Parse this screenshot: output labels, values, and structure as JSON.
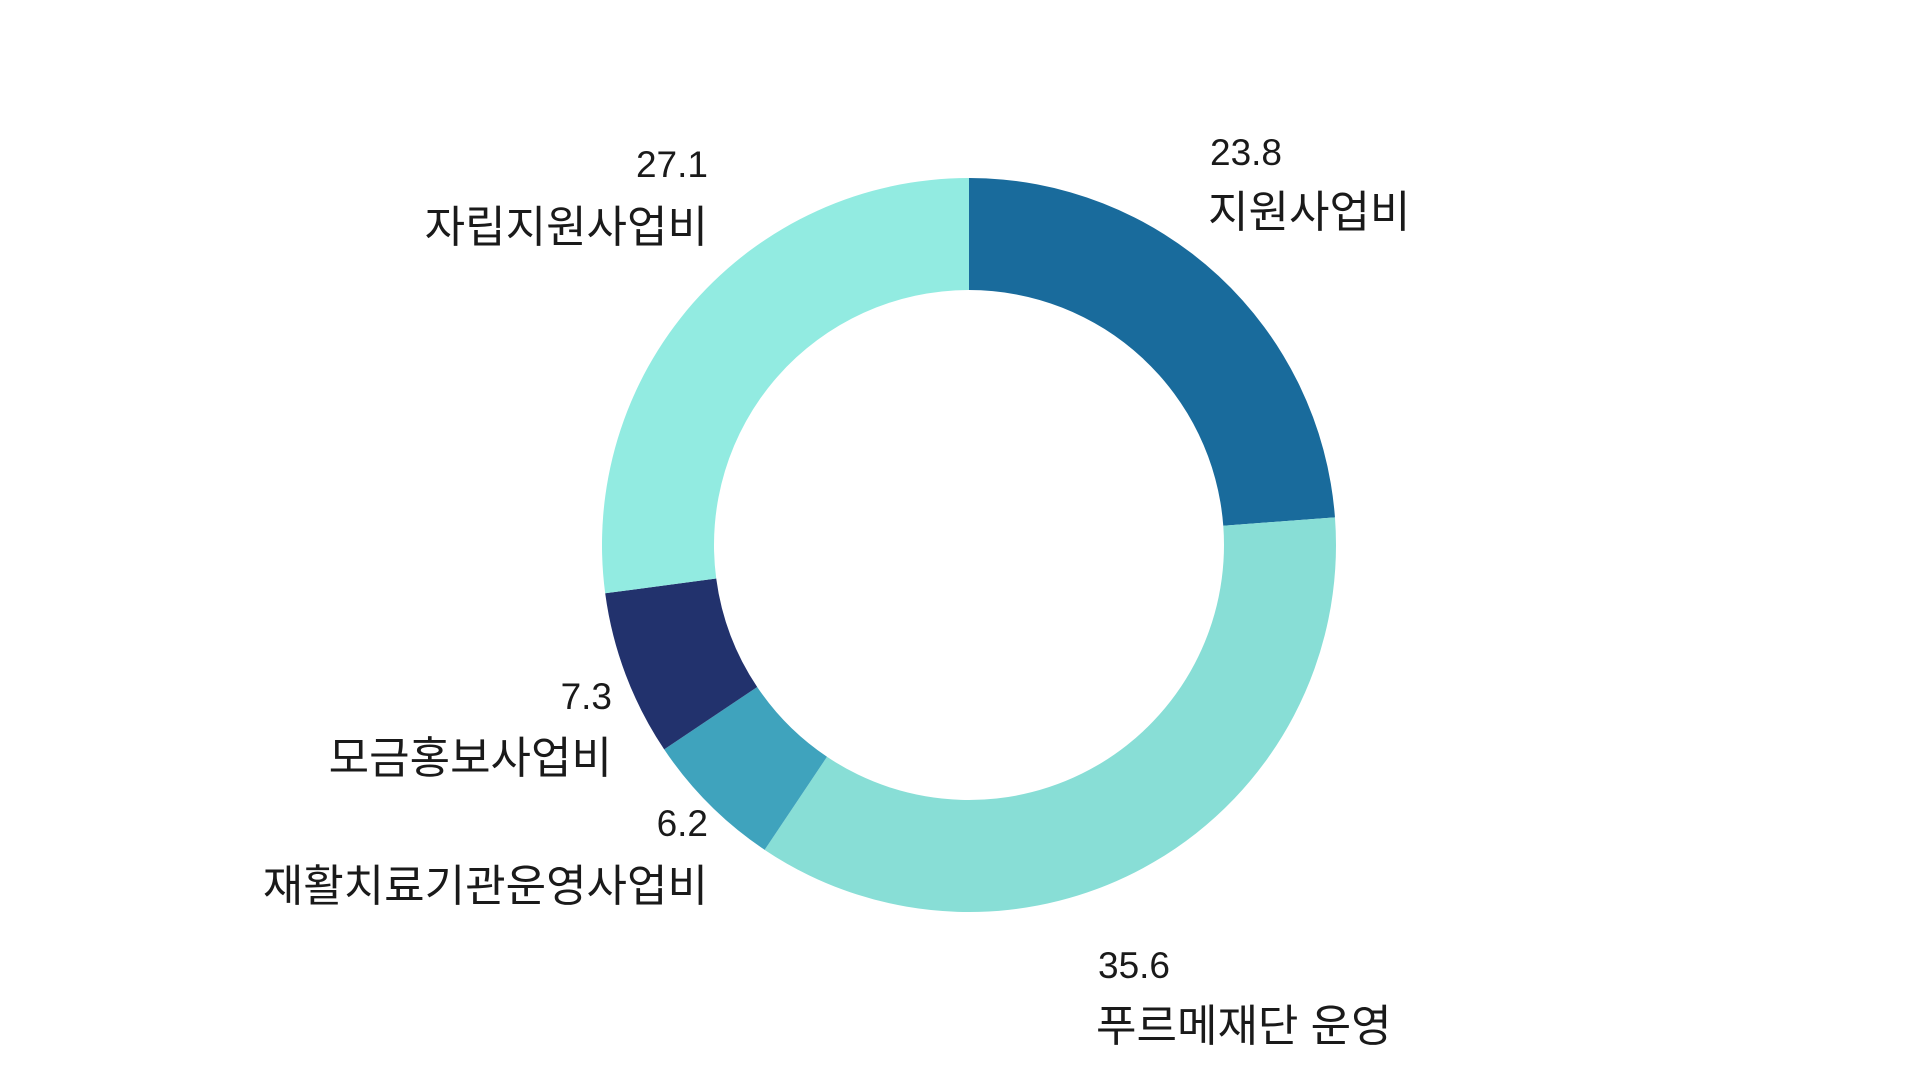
{
  "chart_data": {
    "type": "pie",
    "donut": true,
    "order": "clockwise-from-top",
    "slices": [
      {
        "label": "지원사업비",
        "value": 23.8,
        "value_text": "23.8",
        "color": "#196b9c"
      },
      {
        "label": "푸르메재단 운영",
        "value": 35.6,
        "value_text": "35.6",
        "color": "#88ded6"
      },
      {
        "label": "재활치료기관운영사업비",
        "value": 6.2,
        "value_text": "6.2",
        "color": "#3fa3bd"
      },
      {
        "label": "모금홍보사업비",
        "value": 7.3,
        "value_text": "7.3",
        "color": "#22326d"
      },
      {
        "label": "자립지원사업비",
        "value": 27.1,
        "value_text": "27.1",
        "color": "#92ebe1"
      }
    ]
  }
}
